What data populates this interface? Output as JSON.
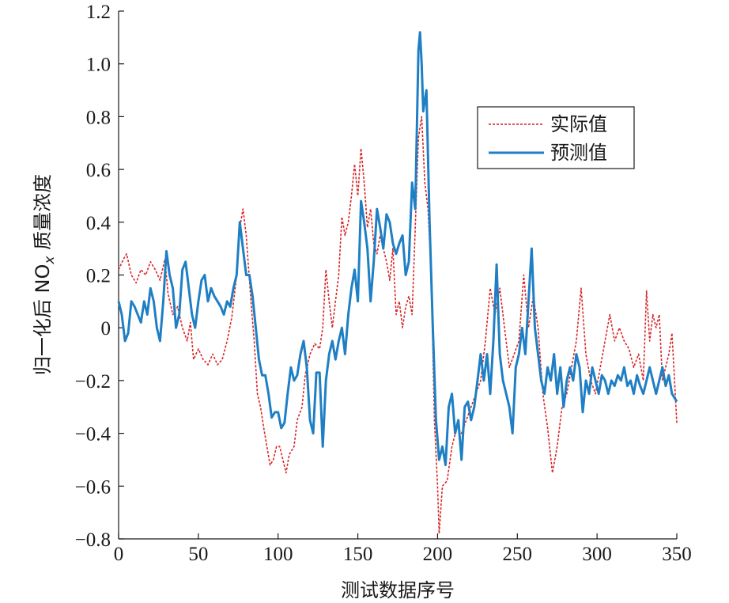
{
  "chart_data": {
    "type": "line",
    "xlabel": "测试数据序号",
    "ylabel_prefix": "归一化后 NO",
    "ylabel_sub": "x",
    "ylabel_suffix": " 质量浓度",
    "xlim": [
      0,
      350
    ],
    "ylim": [
      -0.8,
      1.2
    ],
    "xticks": [
      0,
      50,
      100,
      150,
      200,
      250,
      300,
      350
    ],
    "yticks": [
      -0.8,
      -0.6,
      -0.4,
      -0.2,
      0,
      0.2,
      0.4,
      0.6,
      0.8,
      1.0,
      1.2
    ],
    "ytick_labels": [
      "−0.8",
      "−0.6",
      "−0.4",
      "−0.2",
      "0",
      "0.2",
      "0.4",
      "0.6",
      "0.8",
      "1.0",
      "1.2"
    ],
    "grid": false,
    "legend_position": "upper-right",
    "series": [
      {
        "name": "实际值",
        "color": "#d62728",
        "style": "dotted",
        "points": [
          [
            0,
            0.22
          ],
          [
            3,
            0.26
          ],
          [
            5,
            0.28
          ],
          [
            8,
            0.2
          ],
          [
            11,
            0.17
          ],
          [
            14,
            0.22
          ],
          [
            17,
            0.2
          ],
          [
            20,
            0.25
          ],
          [
            23,
            0.22
          ],
          [
            26,
            0.18
          ],
          [
            29,
            0.26
          ],
          [
            31,
            0.13
          ],
          [
            34,
            0.05
          ],
          [
            37,
            0.08
          ],
          [
            40,
            0.0
          ],
          [
            43,
            -0.05
          ],
          [
            45,
            0.02
          ],
          [
            47,
            -0.12
          ],
          [
            50,
            -0.08
          ],
          [
            53,
            -0.12
          ],
          [
            56,
            -0.14
          ],
          [
            59,
            -0.1
          ],
          [
            62,
            -0.14
          ],
          [
            65,
            -0.12
          ],
          [
            68,
            -0.05
          ],
          [
            71,
            0.04
          ],
          [
            74,
            0.2
          ],
          [
            76,
            0.38
          ],
          [
            78,
            0.45
          ],
          [
            80,
            0.35
          ],
          [
            83,
            0.1
          ],
          [
            85,
            -0.05
          ],
          [
            87,
            -0.25
          ],
          [
            89,
            -0.3
          ],
          [
            91,
            -0.38
          ],
          [
            93,
            -0.45
          ],
          [
            95,
            -0.52
          ],
          [
            97,
            -0.5
          ],
          [
            99,
            -0.45
          ],
          [
            101,
            -0.45
          ],
          [
            103,
            -0.5
          ],
          [
            105,
            -0.55
          ],
          [
            107,
            -0.48
          ],
          [
            110,
            -0.45
          ],
          [
            112,
            -0.35
          ],
          [
            115,
            -0.3
          ],
          [
            117,
            -0.18
          ],
          [
            120,
            -0.1
          ],
          [
            123,
            -0.06
          ],
          [
            126,
            -0.08
          ],
          [
            128,
            0.0
          ],
          [
            130,
            0.22
          ],
          [
            132,
            0.1
          ],
          [
            134,
            0.0
          ],
          [
            136,
            0.1
          ],
          [
            138,
            0.2
          ],
          [
            140,
            0.42
          ],
          [
            142,
            0.35
          ],
          [
            144,
            0.4
          ],
          [
            146,
            0.5
          ],
          [
            148,
            0.62
          ],
          [
            150,
            0.5
          ],
          [
            152,
            0.68
          ],
          [
            154,
            0.55
          ],
          [
            156,
            0.38
          ],
          [
            158,
            0.45
          ],
          [
            160,
            0.32
          ],
          [
            162,
            0.28
          ],
          [
            164,
            0.35
          ],
          [
            166,
            0.3
          ],
          [
            168,
            0.25
          ],
          [
            170,
            0.18
          ],
          [
            172,
            0.3
          ],
          [
            174,
            0.05
          ],
          [
            176,
            0.1
          ],
          [
            178,
            0.0
          ],
          [
            180,
            0.08
          ],
          [
            182,
            0.12
          ],
          [
            184,
            0.05
          ],
          [
            186,
            0.38
          ],
          [
            188,
            0.72
          ],
          [
            190,
            0.8
          ],
          [
            192,
            0.55
          ],
          [
            194,
            0.45
          ],
          [
            196,
            0.2
          ],
          [
            198,
            -0.35
          ],
          [
            200,
            -0.6
          ],
          [
            201,
            -0.78
          ],
          [
            203,
            -0.6
          ],
          [
            206,
            -0.58
          ],
          [
            209,
            -0.45
          ],
          [
            212,
            -0.38
          ],
          [
            215,
            -0.4
          ],
          [
            218,
            -0.35
          ],
          [
            221,
            -0.3
          ],
          [
            224,
            -0.25
          ],
          [
            227,
            -0.2
          ],
          [
            230,
            -0.05
          ],
          [
            233,
            0.15
          ],
          [
            236,
            0.05
          ],
          [
            239,
            0.15
          ],
          [
            242,
            0.0
          ],
          [
            245,
            -0.15
          ],
          [
            248,
            -0.1
          ],
          [
            251,
            -0.05
          ],
          [
            254,
            0.2
          ],
          [
            257,
            0.0
          ],
          [
            260,
            0.12
          ],
          [
            263,
            0.0
          ],
          [
            266,
            -0.25
          ],
          [
            269,
            -0.38
          ],
          [
            272,
            -0.55
          ],
          [
            275,
            -0.45
          ],
          [
            278,
            -0.3
          ],
          [
            281,
            -0.25
          ],
          [
            284,
            -0.15
          ],
          [
            287,
            -0.05
          ],
          [
            290,
            0.15
          ],
          [
            293,
            -0.1
          ],
          [
            296,
            -0.2
          ],
          [
            299,
            -0.25
          ],
          [
            302,
            -0.15
          ],
          [
            305,
            -0.05
          ],
          [
            308,
            0.05
          ],
          [
            311,
            -0.05
          ],
          [
            314,
            0.0
          ],
          [
            317,
            -0.05
          ],
          [
            320,
            -0.08
          ],
          [
            323,
            -0.15
          ],
          [
            326,
            -0.1
          ],
          [
            329,
            -0.2
          ],
          [
            331,
            0.14
          ],
          [
            333,
            -0.05
          ],
          [
            335,
            0.05
          ],
          [
            337,
            0.0
          ],
          [
            339,
            0.05
          ],
          [
            341,
            -0.2
          ],
          [
            343,
            -0.15
          ],
          [
            345,
            -0.1
          ],
          [
            347,
            -0.02
          ],
          [
            349,
            -0.25
          ],
          [
            350,
            -0.36
          ]
        ]
      },
      {
        "name": "预测值",
        "color": "#1f7fc4",
        "style": "solid",
        "points": [
          [
            0,
            0.1
          ],
          [
            2,
            0.05
          ],
          [
            4,
            -0.05
          ],
          [
            6,
            -0.02
          ],
          [
            8,
            0.1
          ],
          [
            10,
            0.08
          ],
          [
            12,
            0.05
          ],
          [
            14,
            0.02
          ],
          [
            16,
            0.1
          ],
          [
            18,
            0.05
          ],
          [
            20,
            0.15
          ],
          [
            22,
            0.1
          ],
          [
            24,
            0.0
          ],
          [
            26,
            -0.05
          ],
          [
            28,
            0.1
          ],
          [
            30,
            0.29
          ],
          [
            32,
            0.2
          ],
          [
            34,
            0.15
          ],
          [
            36,
            0.0
          ],
          [
            38,
            0.05
          ],
          [
            40,
            0.22
          ],
          [
            42,
            0.25
          ],
          [
            44,
            0.15
          ],
          [
            46,
            0.05
          ],
          [
            48,
            0.0
          ],
          [
            50,
            0.1
          ],
          [
            52,
            0.18
          ],
          [
            54,
            0.2
          ],
          [
            56,
            0.1
          ],
          [
            58,
            0.15
          ],
          [
            60,
            0.12
          ],
          [
            62,
            0.1
          ],
          [
            64,
            0.08
          ],
          [
            66,
            0.05
          ],
          [
            68,
            0.1
          ],
          [
            70,
            0.08
          ],
          [
            72,
            0.15
          ],
          [
            74,
            0.2
          ],
          [
            76,
            0.4
          ],
          [
            78,
            0.3
          ],
          [
            80,
            0.2
          ],
          [
            82,
            0.2
          ],
          [
            84,
            0.12
          ],
          [
            86,
            0.0
          ],
          [
            88,
            -0.12
          ],
          [
            90,
            -0.18
          ],
          [
            92,
            -0.18
          ],
          [
            94,
            -0.25
          ],
          [
            96,
            -0.34
          ],
          [
            98,
            -0.32
          ],
          [
            100,
            -0.32
          ],
          [
            102,
            -0.38
          ],
          [
            104,
            -0.36
          ],
          [
            106,
            -0.25
          ],
          [
            108,
            -0.15
          ],
          [
            110,
            -0.2
          ],
          [
            112,
            -0.18
          ],
          [
            114,
            -0.1
          ],
          [
            116,
            -0.05
          ],
          [
            118,
            -0.15
          ],
          [
            120,
            -0.35
          ],
          [
            122,
            -0.4
          ],
          [
            124,
            -0.17
          ],
          [
            126,
            -0.17
          ],
          [
            128,
            -0.45
          ],
          [
            130,
            -0.2
          ],
          [
            132,
            -0.1
          ],
          [
            134,
            -0.05
          ],
          [
            136,
            -0.12
          ],
          [
            138,
            -0.05
          ],
          [
            140,
            0.0
          ],
          [
            142,
            -0.1
          ],
          [
            144,
            0.05
          ],
          [
            146,
            0.15
          ],
          [
            148,
            0.22
          ],
          [
            150,
            0.1
          ],
          [
            152,
            0.48
          ],
          [
            154,
            0.4
          ],
          [
            156,
            0.3
          ],
          [
            158,
            0.1
          ],
          [
            160,
            0.25
          ],
          [
            162,
            0.45
          ],
          [
            164,
            0.38
          ],
          [
            166,
            0.3
          ],
          [
            168,
            0.43
          ],
          [
            170,
            0.4
          ],
          [
            172,
            0.32
          ],
          [
            174,
            0.28
          ],
          [
            176,
            0.32
          ],
          [
            178,
            0.35
          ],
          [
            180,
            0.2
          ],
          [
            182,
            0.25
          ],
          [
            184,
            0.55
          ],
          [
            186,
            0.45
          ],
          [
            188,
            1.05
          ],
          [
            189,
            1.12
          ],
          [
            190,
            1.0
          ],
          [
            191,
            0.82
          ],
          [
            193,
            0.9
          ],
          [
            195,
            0.4
          ],
          [
            197,
            0.0
          ],
          [
            199,
            -0.35
          ],
          [
            201,
            -0.5
          ],
          [
            203,
            -0.45
          ],
          [
            205,
            -0.52
          ],
          [
            207,
            -0.3
          ],
          [
            209,
            -0.25
          ],
          [
            211,
            -0.4
          ],
          [
            213,
            -0.35
          ],
          [
            215,
            -0.5
          ],
          [
            217,
            -0.3
          ],
          [
            219,
            -0.28
          ],
          [
            221,
            -0.35
          ],
          [
            223,
            -0.3
          ],
          [
            225,
            -0.2
          ],
          [
            227,
            -0.1
          ],
          [
            229,
            -0.2
          ],
          [
            231,
            -0.1
          ],
          [
            233,
            -0.25
          ],
          [
            235,
            -0.05
          ],
          [
            237,
            0.24
          ],
          [
            239,
            -0.1
          ],
          [
            241,
            -0.2
          ],
          [
            243,
            -0.25
          ],
          [
            245,
            -0.3
          ],
          [
            247,
            -0.4
          ],
          [
            249,
            -0.15
          ],
          [
            251,
            -0.1
          ],
          [
            253,
            0.0
          ],
          [
            255,
            -0.1
          ],
          [
            257,
            0.1
          ],
          [
            259,
            0.3
          ],
          [
            261,
            0.0
          ],
          [
            263,
            -0.1
          ],
          [
            265,
            -0.2
          ],
          [
            267,
            -0.25
          ],
          [
            269,
            -0.15
          ],
          [
            271,
            -0.2
          ],
          [
            273,
            -0.1
          ],
          [
            275,
            -0.25
          ],
          [
            277,
            -0.15
          ],
          [
            279,
            -0.3
          ],
          [
            281,
            -0.2
          ],
          [
            283,
            -0.15
          ],
          [
            285,
            -0.2
          ],
          [
            287,
            -0.1
          ],
          [
            289,
            -0.15
          ],
          [
            291,
            -0.32
          ],
          [
            293,
            -0.2
          ],
          [
            295,
            -0.25
          ],
          [
            297,
            -0.15
          ],
          [
            299,
            -0.2
          ],
          [
            301,
            -0.25
          ],
          [
            303,
            -0.18
          ],
          [
            305,
            -0.2
          ],
          [
            307,
            -0.25
          ],
          [
            309,
            -0.2
          ],
          [
            311,
            -0.22
          ],
          [
            313,
            -0.18
          ],
          [
            315,
            -0.2
          ],
          [
            317,
            -0.15
          ],
          [
            319,
            -0.22
          ],
          [
            321,
            -0.2
          ],
          [
            323,
            -0.25
          ],
          [
            325,
            -0.18
          ],
          [
            327,
            -0.22
          ],
          [
            329,
            -0.25
          ],
          [
            331,
            -0.2
          ],
          [
            333,
            -0.15
          ],
          [
            335,
            -0.2
          ],
          [
            337,
            -0.25
          ],
          [
            339,
            -0.2
          ],
          [
            341,
            -0.15
          ],
          [
            343,
            -0.22
          ],
          [
            345,
            -0.18
          ],
          [
            347,
            -0.25
          ],
          [
            349,
            -0.27
          ],
          [
            350,
            -0.28
          ]
        ]
      }
    ]
  }
}
